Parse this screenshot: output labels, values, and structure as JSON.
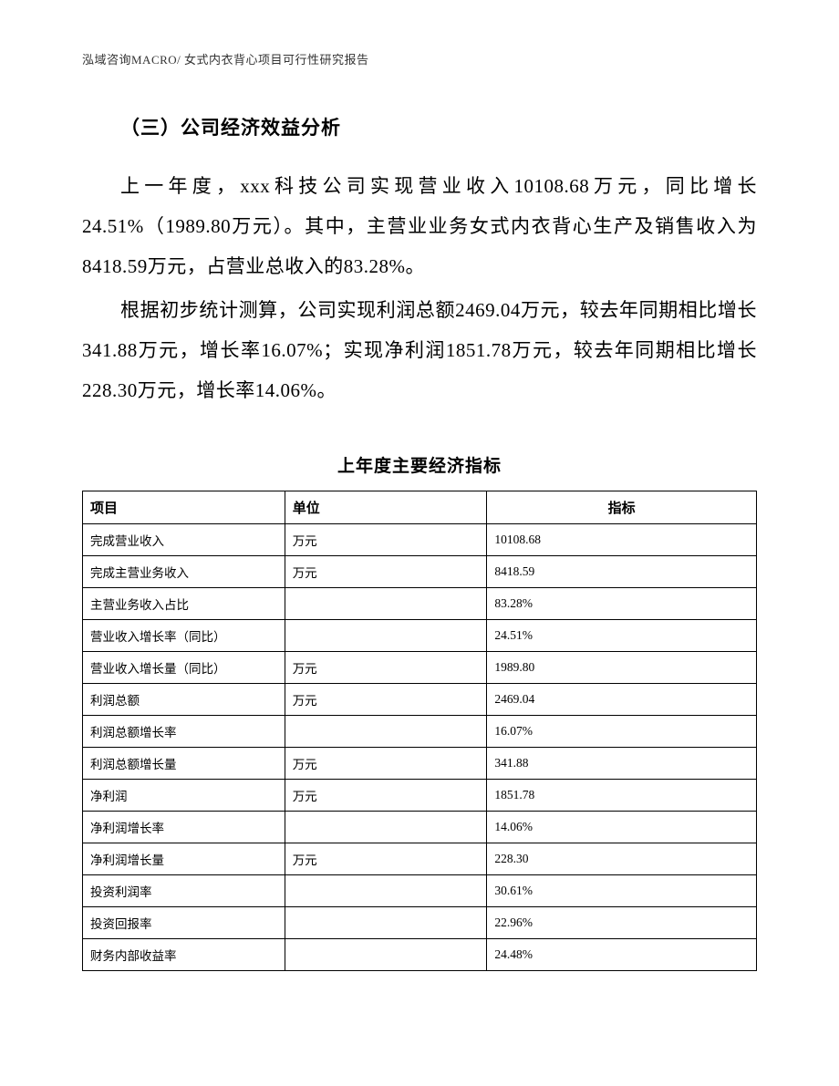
{
  "header": {
    "text": "泓域咨询MACRO/    女式内衣背心项目可行性研究报告"
  },
  "section": {
    "title": "（三）公司经济效益分析"
  },
  "paragraphs": {
    "p1": "上一年度，xxx科技公司实现营业收入10108.68万元，同比增长24.51%（1989.80万元）。其中，主营业业务女式内衣背心生产及销售收入为8418.59万元，占营业总收入的83.28%。",
    "p2": "根据初步统计测算，公司实现利润总额2469.04万元，较去年同期相比增长341.88万元，增长率16.07%；实现净利润1851.78万元，较去年同期相比增长228.30万元，增长率14.06%。"
  },
  "table": {
    "title": "上年度主要经济指标",
    "columns": {
      "c1": "项目",
      "c2": "单位",
      "c3": "指标"
    },
    "column_widths": [
      "30%",
      "30%",
      "40%"
    ],
    "rows": [
      {
        "item": "完成营业收入",
        "unit": "万元",
        "value": "10108.68"
      },
      {
        "item": "完成主营业务收入",
        "unit": "万元",
        "value": "8418.59"
      },
      {
        "item": "主营业务收入占比",
        "unit": "",
        "value": "83.28%"
      },
      {
        "item": "营业收入增长率（同比）",
        "unit": "",
        "value": "24.51%"
      },
      {
        "item": "营业收入增长量（同比）",
        "unit": "万元",
        "value": "1989.80"
      },
      {
        "item": "利润总额",
        "unit": "万元",
        "value": "2469.04"
      },
      {
        "item": "利润总额增长率",
        "unit": "",
        "value": "16.07%"
      },
      {
        "item": "利润总额增长量",
        "unit": "万元",
        "value": "341.88"
      },
      {
        "item": "净利润",
        "unit": "万元",
        "value": "1851.78"
      },
      {
        "item": "净利润增长率",
        "unit": "",
        "value": "14.06%"
      },
      {
        "item": "净利润增长量",
        "unit": "万元",
        "value": "228.30"
      },
      {
        "item": "投资利润率",
        "unit": "",
        "value": "30.61%"
      },
      {
        "item": "投资回报率",
        "unit": "",
        "value": "22.96%"
      },
      {
        "item": "财务内部收益率",
        "unit": "",
        "value": "24.48%"
      }
    ]
  },
  "styling": {
    "page_bg": "#ffffff",
    "text_color": "#000000",
    "header_color": "#333333",
    "border_color": "#000000",
    "body_font_size": 21,
    "table_font_size": 13.5,
    "header_font_size": 13,
    "table_title_font_size": 19,
    "line_height": 2.1
  }
}
